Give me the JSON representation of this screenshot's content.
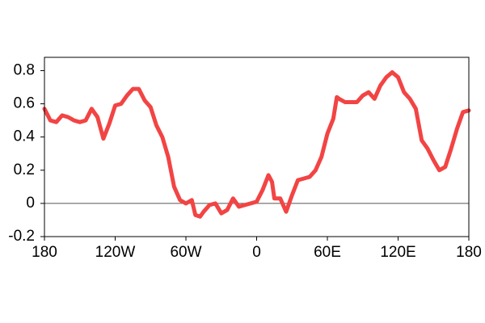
{
  "chart_data": {
    "type": "line",
    "x": [
      -180,
      -175,
      -170,
      -165,
      -160,
      -155,
      -150,
      -145,
      -140,
      -135,
      -130,
      -125,
      -120,
      -115,
      -110,
      -105,
      -100,
      -95,
      -90,
      -85,
      -80,
      -75,
      -70,
      -65,
      -60,
      -55,
      -52,
      -48,
      -45,
      -40,
      -35,
      -30,
      -25,
      -20,
      -15,
      -10,
      -5,
      0,
      5,
      10,
      13,
      15,
      20,
      25,
      30,
      35,
      40,
      45,
      50,
      55,
      60,
      65,
      68,
      70,
      75,
      80,
      85,
      90,
      95,
      100,
      105,
      110,
      115,
      120,
      125,
      130,
      135,
      140,
      145,
      150,
      155,
      160,
      165,
      170,
      175,
      180
    ],
    "series": [
      {
        "color": "#f24444",
        "values": [
          0.57,
          0.5,
          0.49,
          0.53,
          0.52,
          0.5,
          0.49,
          0.5,
          0.57,
          0.52,
          0.39,
          0.48,
          0.59,
          0.6,
          0.65,
          0.69,
          0.69,
          0.62,
          0.58,
          0.47,
          0.4,
          0.28,
          0.1,
          0.02,
          0.0,
          0.02,
          -0.07,
          -0.08,
          -0.05,
          -0.01,
          0.0,
          -0.06,
          -0.04,
          0.03,
          -0.02,
          -0.01,
          0.0,
          0.01,
          0.08,
          0.17,
          0.13,
          0.03,
          0.03,
          -0.05,
          0.05,
          0.14,
          0.15,
          0.16,
          0.2,
          0.28,
          0.42,
          0.51,
          0.64,
          0.63,
          0.61,
          0.61,
          0.61,
          0.65,
          0.67,
          0.63,
          0.71,
          0.76,
          0.79,
          0.76,
          0.67,
          0.63,
          0.57,
          0.38,
          0.33,
          0.26,
          0.2,
          0.22,
          0.33,
          0.45,
          0.55,
          0.56
        ]
      }
    ],
    "xlim": [
      -180,
      180
    ],
    "xticks": [
      {
        "value": -180,
        "label": "180"
      },
      {
        "value": -120,
        "label": "120W"
      },
      {
        "value": -60,
        "label": "60W"
      },
      0,
      {
        "value": 60,
        "label": "60E"
      },
      {
        "value": 120,
        "label": "120E"
      },
      180
    ],
    "ylim": [
      -0.2,
      0.88
    ],
    "yticks": [
      -0.2,
      0,
      0.2,
      0.4,
      0.6,
      0.8
    ],
    "zero_line": true
  }
}
